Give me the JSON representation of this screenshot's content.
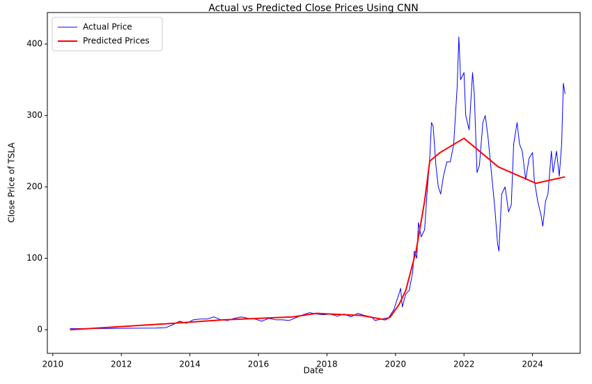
{
  "chart_data": {
    "type": "line",
    "title": "Actual vs Predicted Close Prices Using CNN",
    "x_label": "Date",
    "y_label": "Close Price of TSLA",
    "xlim": [
      2009.84,
      2025.39
    ],
    "xticks": [
      2010,
      2012,
      2014,
      2016,
      2018,
      2020,
      2022,
      2024
    ],
    "ylim": [
      -33,
      444
    ],
    "yticks": [
      0,
      100,
      200,
      300,
      400
    ],
    "grid": false,
    "legend": "upper left",
    "series": [
      {
        "name": "Actual Price",
        "color": "#0000ff",
        "width": 1,
        "x": [
          2010.5,
          2011,
          2011.5,
          2012,
          2012.5,
          2013,
          2013.3,
          2013.5,
          2013.7,
          2013.9,
          2014.1,
          2014.3,
          2014.5,
          2014.7,
          2014.9,
          2015.1,
          2015.3,
          2015.5,
          2015.7,
          2015.9,
          2016.1,
          2016.3,
          2016.5,
          2016.7,
          2016.9,
          2017.1,
          2017.3,
          2017.5,
          2017.7,
          2017.9,
          2018.1,
          2018.3,
          2018.5,
          2018.7,
          2018.9,
          2019.1,
          2019.3,
          2019.4,
          2019.6,
          2019.8,
          2019.95,
          2020.1,
          2020.15,
          2020.2,
          2020.3,
          2020.4,
          2020.5,
          2020.55,
          2020.62,
          2020.67,
          2020.75,
          2020.85,
          2020.92,
          2021.0,
          2021.05,
          2021.1,
          2021.18,
          2021.25,
          2021.32,
          2021.4,
          2021.5,
          2021.6,
          2021.7,
          2021.8,
          2021.85,
          2021.9,
          2022.0,
          2022.05,
          2022.15,
          2022.25,
          2022.3,
          2022.38,
          2022.45,
          2022.55,
          2022.62,
          2022.7,
          2022.8,
          2022.9,
          2022.98,
          2023.02,
          2023.1,
          2023.2,
          2023.3,
          2023.38,
          2023.45,
          2023.55,
          2023.62,
          2023.7,
          2023.8,
          2023.9,
          2024.0,
          2024.05,
          2024.15,
          2024.25,
          2024.3,
          2024.38,
          2024.45,
          2024.55,
          2024.6,
          2024.7,
          2024.78,
          2024.85,
          2024.9,
          2024.95
        ],
        "values": [
          1.5,
          1.8,
          1.8,
          2,
          2.2,
          2.3,
          3,
          7,
          12,
          9,
          14,
          15,
          15,
          18,
          14,
          13,
          16,
          18,
          16,
          15,
          12,
          16,
          14,
          14,
          13,
          17,
          21,
          24,
          22,
          21,
          22,
          19,
          22,
          18,
          23,
          20,
          18,
          13,
          15,
          17,
          28,
          50,
          58,
          32,
          50,
          55,
          80,
          110,
          100,
          150,
          130,
          140,
          190,
          240,
          290,
          285,
          230,
          200,
          190,
          215,
          235,
          235,
          260,
          340,
          410,
          350,
          360,
          300,
          280,
          360,
          330,
          220,
          230,
          290,
          300,
          270,
          220,
          170,
          120,
          110,
          190,
          200,
          165,
          175,
          260,
          290,
          260,
          250,
          210,
          240,
          248,
          210,
          180,
          160,
          145,
          180,
          190,
          250,
          220,
          250,
          215,
          260,
          345,
          330
        ]
      },
      {
        "name": "Predicted Prices",
        "color": "#ff0000",
        "width": 2,
        "x": [
          2010.5,
          2013.5,
          2015,
          2017,
          2017.7,
          2019,
          2019.7,
          2019.85,
          2020.1,
          2020.3,
          2020.6,
          2020.85,
          2021.0,
          2021.3,
          2022.0,
          2023,
          2024.1,
          2024.95
        ],
        "values": [
          0,
          9,
          14,
          18,
          23,
          20,
          14,
          18,
          35,
          55,
          110,
          180,
          236,
          248,
          268,
          228,
          205,
          214
        ]
      }
    ]
  }
}
